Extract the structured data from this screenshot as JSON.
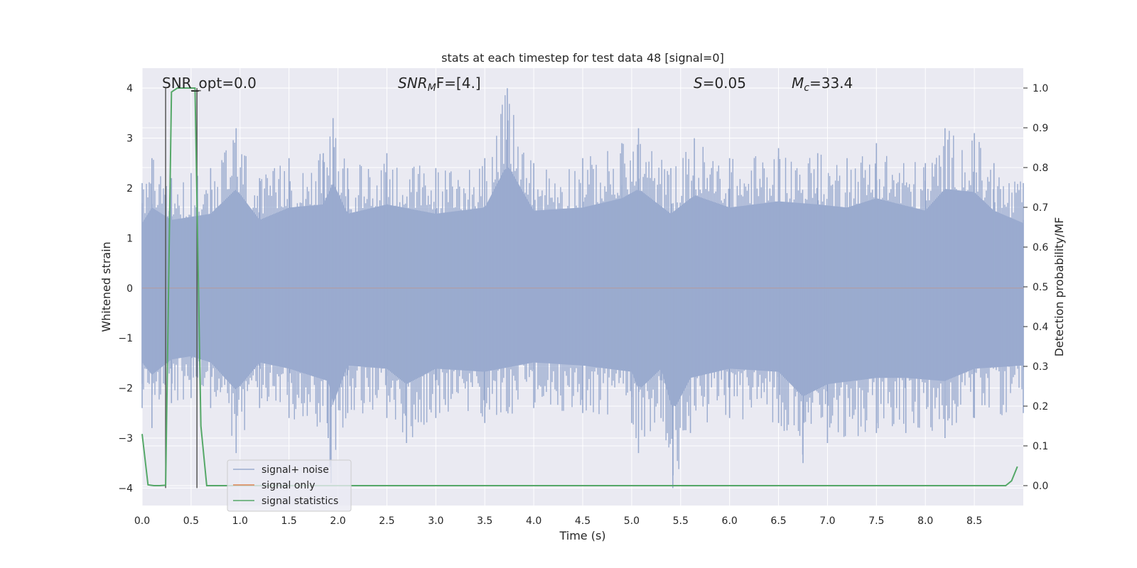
{
  "chart_data": {
    "type": "line",
    "title": "stats at each timestep for test data 48 [signal=0]",
    "xlabel": "Time (s)",
    "ylabel_left": "Whitened strain",
    "ylabel_right": "Detection probability/MF",
    "xlim": [
      0.0,
      9.0
    ],
    "ylim_left": [
      -4.35,
      4.4
    ],
    "ylim_right": [
      -0.05,
      1.05
    ],
    "x_ticks": [
      "0.0",
      "0.5",
      "1.0",
      "1.5",
      "2.0",
      "2.5",
      "3.0",
      "3.5",
      "4.0",
      "4.5",
      "5.0",
      "5.5",
      "6.0",
      "6.5",
      "7.0",
      "7.5",
      "8.0",
      "8.5"
    ],
    "y_ticks_left": [
      "4",
      "3",
      "2",
      "1",
      "0",
      "−1",
      "−2",
      "−3",
      "−4"
    ],
    "y_ticks_right": [
      "1.0",
      "0.9",
      "0.8",
      "0.7",
      "0.6",
      "0.5",
      "0.4",
      "0.3",
      "0.2",
      "0.1",
      "0.0"
    ],
    "grid": true,
    "legend_position": "lower-left",
    "annotations": {
      "snr_opt": "SNR_opt=0.0",
      "snr_mf_sym": "SNR",
      "snr_mf_sub": "M",
      "snr_mf_rest": "F=[4.]",
      "s_sym": "S",
      "s_rest": "=0.05",
      "mc_sym": "M",
      "mc_sub": "c",
      "mc_rest": "=33.4"
    },
    "series": [
      {
        "name": "signal+ noise",
        "color": "#9aabcf",
        "axis": "left",
        "note_values": "dense whitened strain noise, envelope roughly ±2.5",
        "envelope_upper": [
          [
            0.0,
            2.1
          ],
          [
            0.1,
            2.6
          ],
          [
            0.3,
            2.2
          ],
          [
            0.5,
            2.3
          ],
          [
            0.7,
            2.4
          ],
          [
            0.96,
            3.2
          ],
          [
            1.2,
            2.2
          ],
          [
            1.5,
            2.6
          ],
          [
            1.85,
            2.7
          ],
          [
            1.95,
            3.4
          ],
          [
            2.1,
            2.4
          ],
          [
            2.5,
            2.7
          ],
          [
            3.0,
            2.4
          ],
          [
            3.5,
            2.6
          ],
          [
            3.73,
            4.0
          ],
          [
            4.0,
            2.5
          ],
          [
            4.5,
            2.6
          ],
          [
            4.9,
            2.9
          ],
          [
            5.07,
            3.2
          ],
          [
            5.4,
            2.4
          ],
          [
            5.64,
            3.0
          ],
          [
            6.0,
            2.6
          ],
          [
            6.5,
            2.8
          ],
          [
            6.9,
            2.7
          ],
          [
            7.2,
            2.6
          ],
          [
            7.5,
            2.9
          ],
          [
            8.0,
            2.5
          ],
          [
            8.2,
            3.2
          ],
          [
            8.5,
            3.1
          ],
          [
            8.7,
            2.5
          ],
          [
            9.0,
            2.1
          ]
        ],
        "envelope_lower": [
          [
            0.0,
            -2.4
          ],
          [
            0.1,
            -2.8
          ],
          [
            0.3,
            -2.3
          ],
          [
            0.5,
            -2.2
          ],
          [
            0.7,
            -2.4
          ],
          [
            0.96,
            -3.3
          ],
          [
            1.2,
            -2.4
          ],
          [
            1.5,
            -2.6
          ],
          [
            1.9,
            -3.0
          ],
          [
            1.93,
            -3.9
          ],
          [
            2.1,
            -2.5
          ],
          [
            2.5,
            -2.6
          ],
          [
            2.7,
            -3.1
          ],
          [
            3.0,
            -2.6
          ],
          [
            3.5,
            -2.7
          ],
          [
            4.0,
            -2.4
          ],
          [
            4.5,
            -2.5
          ],
          [
            5.0,
            -2.7
          ],
          [
            5.07,
            -3.3
          ],
          [
            5.3,
            -2.6
          ],
          [
            5.42,
            -4.0
          ],
          [
            5.6,
            -2.9
          ],
          [
            6.0,
            -2.6
          ],
          [
            6.5,
            -2.7
          ],
          [
            6.75,
            -3.5
          ],
          [
            7.0,
            -3.1
          ],
          [
            7.5,
            -2.9
          ],
          [
            7.8,
            -2.9
          ],
          [
            8.2,
            -3.0
          ],
          [
            8.5,
            -2.6
          ],
          [
            9.0,
            -2.5
          ]
        ]
      },
      {
        "name": "signal only",
        "color": "#dd8452",
        "axis": "left",
        "x": [
          0.0,
          9.0
        ],
        "y": [
          0.0,
          0.0
        ]
      },
      {
        "name": "signal statistics",
        "color": "#55a868",
        "axis": "right",
        "x": [
          0.0,
          0.06,
          0.12,
          0.18,
          0.24,
          0.3,
          0.36,
          0.42,
          0.48,
          0.54,
          0.6,
          0.66,
          0.72,
          8.82,
          8.88,
          8.94
        ],
        "y": [
          0.13,
          0.002,
          0.0,
          0.0,
          0.001,
          0.99,
          1.0,
          1.0,
          1.0,
          1.0,
          0.15,
          0.0,
          0.0,
          0.0,
          0.012,
          0.048
        ]
      }
    ],
    "markers": {
      "vertical_lines_x": [
        0.24,
        0.56
      ],
      "color": "#555555"
    }
  }
}
